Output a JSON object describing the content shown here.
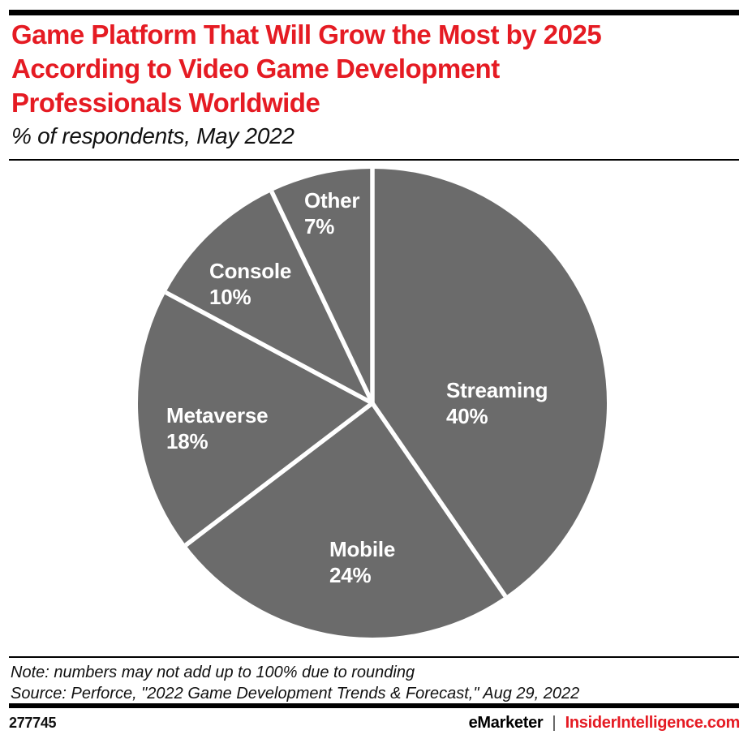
{
  "colors": {
    "accent_red": "#e51b23",
    "pie_slice": "#6b6b6b",
    "separator": "#ffffff",
    "pie_label_text": "#ffffff",
    "text": "#111111",
    "rule": "#000000",
    "background": "#ffffff"
  },
  "header": {
    "title_lines": [
      "Game Platform That Will Grow the Most by 2025",
      "According to Video Game Development",
      "Professionals Worldwide"
    ],
    "subtitle": "% of respondents, May 2022"
  },
  "chart_data": {
    "type": "pie",
    "title": "Game Platform That Will Grow the Most by 2025 According to Video Game Development Professionals Worldwide",
    "subtitle": "% of respondents, May 2022",
    "unit": "% of respondents",
    "categories": [
      "Streaming",
      "Mobile",
      "Metaverse",
      "Console",
      "Other"
    ],
    "values": [
      40,
      24,
      18,
      10,
      7
    ],
    "slices": [
      {
        "label": "Streaming",
        "value": 40,
        "display": "40%"
      },
      {
        "label": "Mobile",
        "value": 24,
        "display": "24%"
      },
      {
        "label": "Metaverse",
        "value": 18,
        "display": "18%"
      },
      {
        "label": "Console",
        "value": 10,
        "display": "10%"
      },
      {
        "label": "Other",
        "value": 7,
        "display": "7%"
      }
    ],
    "start_angle": "12 o'clock",
    "direction": "clockwise",
    "labels_inside": true,
    "legend_position": "none",
    "slice_color": "#6b6b6b",
    "separator_color": "#ffffff",
    "label_color": "#ffffff"
  },
  "notes": {
    "note": "Note: numbers may not add up to 100% due to rounding",
    "source": "Source: Perforce, \"2022 Game Development Trends & Forecast,\" Aug 29, 2022"
  },
  "footer": {
    "chart_id": "277745",
    "brand": "eMarketer",
    "separator": "|",
    "site": "InsiderIntelligence.com"
  }
}
